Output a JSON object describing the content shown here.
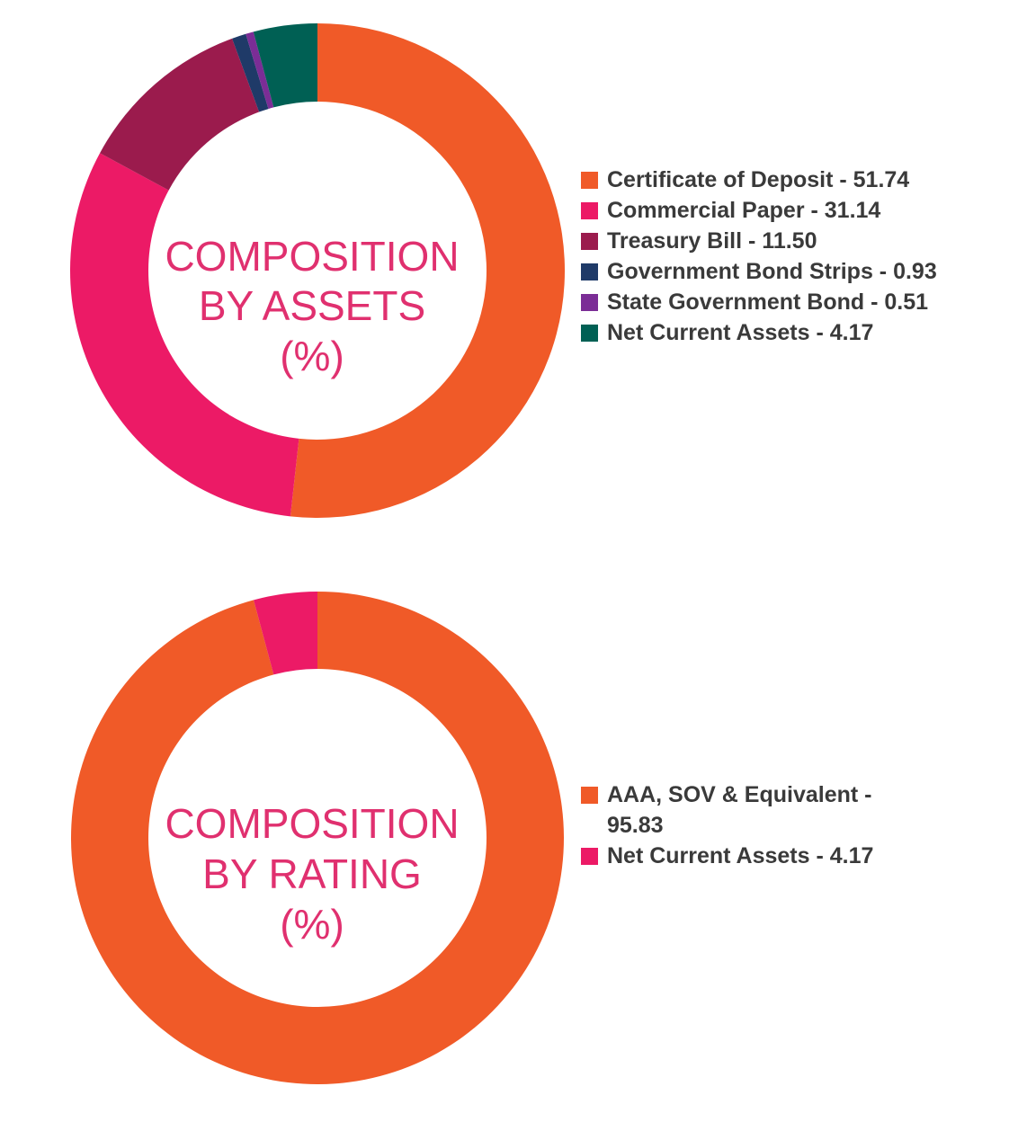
{
  "chart_data": [
    {
      "type": "pie",
      "title": "COMPOSITION BY ASSETS (%)",
      "title_lines": [
        "COMPOSITION",
        "BY ASSETS",
        "(%)"
      ],
      "categories": [
        "Certificate of Deposit",
        "Commercial Paper",
        "Treasury Bill",
        "Government Bond Strips",
        "State Government Bond",
        "Net Current Assets"
      ],
      "values": [
        51.74,
        31.14,
        11.5,
        0.93,
        0.51,
        4.17
      ],
      "value_labels": [
        "51.74",
        "31.14",
        "11.50",
        "0.93",
        "0.51",
        "4.17"
      ],
      "colors": [
        "#f05a28",
        "#ec1a66",
        "#9b1b4d",
        "#1f3a68",
        "#7b2d96",
        "#006054"
      ],
      "legend_position": "right",
      "style": "donut"
    },
    {
      "type": "pie",
      "title": "COMPOSITION BY RATING (%)",
      "title_lines": [
        "COMPOSITION",
        "BY RATING",
        "(%)"
      ],
      "categories": [
        "AAA, SOV & Equivalent",
        "Net Current Assets"
      ],
      "values": [
        95.83,
        4.17
      ],
      "value_labels": [
        "95.83",
        "4.17"
      ],
      "colors": [
        "#f05a28",
        "#ec1a66"
      ],
      "legend_position": "right",
      "style": "donut"
    }
  ]
}
